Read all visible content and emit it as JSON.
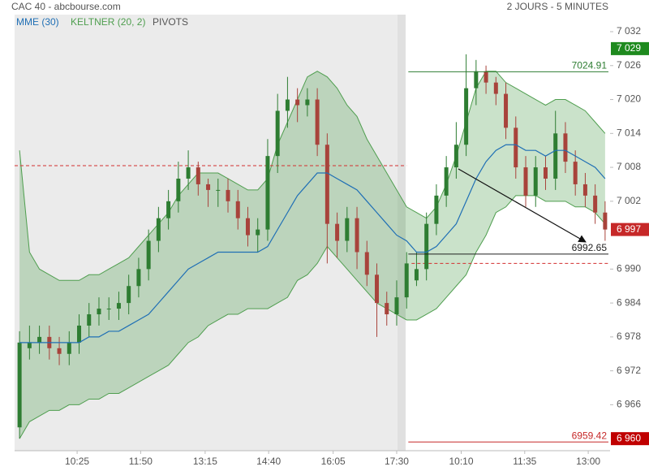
{
  "chart_data": {
    "type": "candlestick",
    "title": "CAC 40 - abcbourse.com",
    "subtitle": "2 JOURS - 5 MINUTES",
    "xlim": [
      0,
      60
    ],
    "xticks": [
      {
        "value": 6.3,
        "label": "10:25"
      },
      {
        "value": 12.7,
        "label": "11:50"
      },
      {
        "value": 19.2,
        "label": "13:15"
      },
      {
        "value": 25.6,
        "label": "14:40"
      },
      {
        "value": 32.1,
        "label": "16:05"
      },
      {
        "value": 38.5,
        "label": "17:30"
      },
      {
        "value": 45.0,
        "label": "10:10"
      },
      {
        "value": 51.4,
        "label": "11:35"
      },
      {
        "value": 57.8,
        "label": "13:00"
      }
    ],
    "ylim": [
      6958.3,
      7034.3
    ],
    "yticks": [
      {
        "value": 7032,
        "label": "7 032"
      },
      {
        "value": 7026,
        "label": "7 026"
      },
      {
        "value": 7020,
        "label": "7 020"
      },
      {
        "value": 7014,
        "label": "7 014"
      },
      {
        "value": 7008,
        "label": "7 008"
      },
      {
        "value": 7002,
        "label": "7 002"
      },
      {
        "value": 6990,
        "label": "6 990"
      },
      {
        "value": 6984,
        "label": "6 984"
      },
      {
        "value": 6978,
        "label": "6 978"
      },
      {
        "value": 6972,
        "label": "6 972"
      },
      {
        "value": 6966,
        "label": "6 966"
      }
    ],
    "up_color": "#2e7d32",
    "down_color": "#a8433b",
    "open": [
      6962,
      6976,
      6977,
      6978,
      6976,
      6975,
      6977,
      6980,
      6982,
      6983,
      6983,
      6984,
      6987,
      6990,
      6995,
      6999,
      7002,
      7006,
      7008,
      7005,
      7004,
      7004,
      7002,
      6999,
      6996,
      6997,
      7010,
      7018,
      7020,
      7019,
      7020,
      7012,
      6998,
      6995,
      6999,
      6993,
      6989,
      6984,
      6982,
      6985,
      6988,
      6990,
      6998,
      7003,
      7008,
      7012,
      7022,
      7025,
      7023,
      7021,
      7015,
      7008,
      7003,
      7008,
      7006,
      7014,
      7009,
      7005,
      7003,
      7000
    ],
    "high": [
      6979,
      6980,
      6980,
      6980,
      6978,
      6979,
      6982,
      6984,
      6985,
      6985,
      6986,
      6989,
      6992,
      6997,
      7001,
      7004,
      7009,
      7011,
      7009,
      7006,
      7006,
      7006,
      7004,
      7001,
      6999,
      7013,
      7021,
      7024,
      7022,
      7022,
      7022,
      7014,
      7000,
      7001,
      7001,
      6995,
      6991,
      6986,
      6988,
      6993,
      6993,
      7000,
      7005,
      7010,
      7016,
      7028,
      7027,
      7026,
      7024,
      7023,
      7017,
      7010,
      7010,
      7010,
      7018,
      7016,
      7011,
      7007,
      7005,
      7002
    ],
    "low": [
      6960,
      6974,
      6975,
      6974,
      6973,
      6973,
      6975,
      6978,
      6980,
      6981,
      6981,
      6982,
      6985,
      6988,
      6993,
      6997,
      7000,
      7004,
      7003,
      7001,
      7001,
      7000,
      6997,
      6994,
      6993,
      6995,
      7007,
      7015,
      7016,
      7017,
      7010,
      6991,
      6992,
      6993,
      6990,
      6987,
      6978,
      6980,
      6980,
      6983,
      6987,
      6988,
      6996,
      7001,
      7006,
      7010,
      7019,
      7021,
      7019,
      7013,
      7006,
      7001,
      7001,
      7004,
      7004,
      7007,
      7003,
      7001,
      6998,
      6995
    ],
    "close": [
      6977,
      6977,
      6978,
      6976,
      6975,
      6977,
      6980,
      6982,
      6983,
      6983,
      6984,
      6987,
      6990,
      6995,
      6999,
      7002,
      7006,
      7008,
      7005,
      7004,
      7004,
      7002,
      6999,
      6996,
      6997,
      7010,
      7018,
      7020,
      7019,
      7020,
      7012,
      6998,
      6995,
      6999,
      6993,
      6989,
      6984,
      6982,
      6985,
      6991,
      6990,
      6998,
      7003,
      7008,
      7012,
      7022,
      7025,
      7023,
      7021,
      7015,
      7008,
      7003,
      7008,
      7006,
      7014,
      7009,
      7005,
      7003,
      7000,
      6997
    ],
    "series": [
      {
        "name": "MME (30)",
        "color": "#1f6fb5",
        "values": [
          6977,
          6977,
          6977,
          6977,
          6977,
          6977,
          6977,
          6978,
          6978,
          6979,
          6979,
          6980,
          6981,
          6982,
          6984,
          6986,
          6988,
          6990,
          6991,
          6992,
          6993,
          6993,
          6993,
          6993,
          6993,
          6994,
          6997,
          7000,
          7003,
          7005,
          7007,
          7007,
          7006,
          7005,
          7004,
          7002,
          7000,
          6998,
          6996,
          6995,
          6993,
          6993,
          6994,
          6996,
          6998,
          7002,
          7006,
          7009,
          7011,
          7012,
          7012,
          7011,
          7011,
          7010,
          7011,
          7011,
          7010,
          7009,
          7008,
          7006
        ]
      },
      {
        "name": "KELTNER (20, 2)",
        "color": "#4f9e4f",
        "upper": [
          7011,
          6993,
          6990,
          6989,
          6988,
          6988,
          6988,
          6989,
          6989,
          6990,
          6991,
          6992,
          6994,
          6996,
          6998,
          7000,
          7003,
          7005,
          7007,
          7007,
          7007,
          7006,
          7005,
          7004,
          7004,
          7006,
          7012,
          7016,
          7020,
          7024,
          7025,
          7024,
          7022,
          7019,
          7017,
          7013,
          7010,
          7007,
          7004,
          7001,
          7000,
          6999,
          7001,
          7005,
          7010,
          7016,
          7022,
          7025,
          7025,
          7023,
          7022,
          7021,
          7020,
          7019,
          7020,
          7020,
          7019,
          7018,
          7016,
          7014
        ],
        "lower": [
          6960,
          6963,
          6964,
          6965,
          6965,
          6966,
          6966,
          6967,
          6967,
          6968,
          6968,
          6969,
          6970,
          6971,
          6972,
          6973,
          6975,
          6977,
          6978,
          6980,
          6981,
          6982,
          6982,
          6983,
          6983,
          6983,
          6984,
          6985,
          6988,
          6989,
          6991,
          6994,
          6992,
          6990,
          6988,
          6986,
          6984,
          6983,
          6982,
          6981,
          6981,
          6982,
          6983,
          6985,
          6987,
          6989,
          6993,
          6996,
          7000,
          7001,
          7003,
          7003,
          7003,
          7002,
          7002,
          7002,
          7001,
          7001,
          7000,
          6998
        ]
      }
    ],
    "pivots": {
      "name": "PIVOTS",
      "color": "#d32f2f",
      "levels": [
        {
          "value": 7008.3,
          "from": 0,
          "to": 39.5
        },
        {
          "value": 6991.0,
          "from": 40,
          "to": 60
        }
      ]
    },
    "reference_lines": [
      {
        "value": 7024.91,
        "color": "#2e7d32",
        "from": 40
      },
      {
        "value": 6992.65,
        "color": "#222222",
        "from": 40
      },
      {
        "value": 6959.42,
        "color": "#c62828",
        "from": 40
      }
    ],
    "price_badges": [
      {
        "value": 7029,
        "label": "7 029",
        "color": "#1e8a1e"
      },
      {
        "value": 6997,
        "label": "6 997",
        "color": "#c62828"
      },
      {
        "value": 6960,
        "label": "6 960",
        "color": "#c00000"
      }
    ]
  }
}
